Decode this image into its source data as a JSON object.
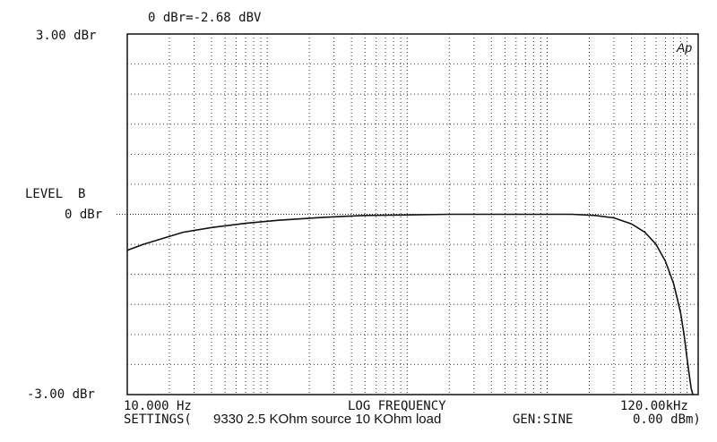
{
  "header": {
    "reference": "0 dBr=-2.68 dBV"
  },
  "chart_data": {
    "type": "line",
    "title": "",
    "xlabel": "LOG FREQUENCY",
    "ylabel": "LEVEL  B",
    "x_scale": "log",
    "xlim": [
      10,
      120000
    ],
    "ylim": [
      -3,
      3
    ],
    "x_tick_labels": {
      "left": "10.000 Hz",
      "right": "120.00kHz"
    },
    "y_tick_labels": [
      "3.00 dBr",
      "0 dBr",
      "-3.00 dBr"
    ],
    "y_ticks": [
      3,
      0,
      -3
    ],
    "reference_line_y": 0,
    "grid": true,
    "series": [
      {
        "x": [
          10,
          13,
          18,
          25,
          40,
          70,
          120,
          250,
          500,
          1000,
          2000,
          4000,
          8000,
          15000,
          22000,
          30000,
          40000,
          50000,
          60000,
          70000,
          80000,
          85000,
          90000,
          95000,
          100000,
          104000,
          107000,
          110000
        ],
        "values": [
          -0.6,
          -0.5,
          -0.4,
          -0.3,
          -0.22,
          -0.15,
          -0.1,
          -0.05,
          -0.02,
          -0.01,
          0.0,
          0.0,
          0.0,
          0.0,
          -0.02,
          -0.06,
          -0.16,
          -0.3,
          -0.5,
          -0.78,
          -1.15,
          -1.4,
          -1.65,
          -2.0,
          -2.4,
          -2.7,
          -2.9,
          -3.0
        ]
      }
    ],
    "logo": "Ap"
  },
  "footer": {
    "settings_prefix": "SETTINGS(",
    "settings_note": "9330 2.5 KOhm source 10 KOhm load",
    "gen": "GEN:SINE",
    "level": "0.00 dBm)"
  }
}
